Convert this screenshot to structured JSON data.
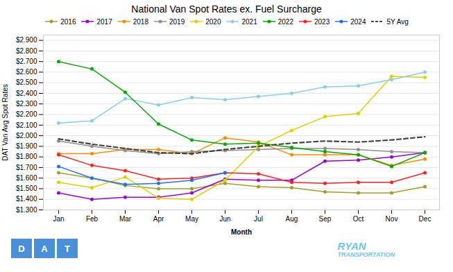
{
  "chart_data": {
    "type": "line",
    "title": "National Van Spot Rates ex. Fuel Surcharge",
    "xlabel": "Month",
    "ylabel": "DAT Van Avg Spot Rates",
    "categories": [
      "Jan",
      "Feb",
      "Mar",
      "Apr",
      "May",
      "Jun",
      "Jul",
      "Aug",
      "Sep",
      "Oct",
      "Nov",
      "Dec"
    ],
    "series": [
      {
        "name": "2016",
        "color": "#a0a028",
        "marker": "circle",
        "line_style": "solid",
        "values": [
          1.65,
          1.6,
          1.53,
          1.5,
          1.5,
          1.55,
          1.52,
          1.51,
          1.47,
          1.46,
          1.46,
          1.52
        ]
      },
      {
        "name": "2017",
        "color": "#9b00d3",
        "marker": "circle",
        "line_style": "solid",
        "values": [
          1.46,
          1.4,
          1.42,
          1.42,
          1.46,
          1.59,
          1.58,
          1.58,
          1.76,
          1.77,
          1.8,
          1.84
        ]
      },
      {
        "name": "2018",
        "color": "#ff8c00",
        "marker": "circle",
        "line_style": "solid",
        "values": [
          1.83,
          1.83,
          1.87,
          1.87,
          1.83,
          1.98,
          1.94,
          1.82,
          1.82,
          1.82,
          1.72,
          1.78
        ]
      },
      {
        "name": "2019",
        "color": "#909090",
        "marker": "circle",
        "line_style": "solid",
        "values": [
          1.95,
          1.9,
          1.86,
          1.83,
          1.85,
          1.86,
          1.87,
          1.88,
          1.88,
          1.87,
          1.85,
          1.84
        ]
      },
      {
        "name": "2020",
        "color": "#e0d000",
        "marker": "circle",
        "line_style": "solid",
        "values": [
          1.56,
          1.51,
          1.61,
          1.41,
          1.4,
          1.58,
          1.9,
          2.05,
          2.18,
          2.21,
          2.56,
          2.55
        ]
      },
      {
        "name": "2021",
        "color": "#87ceeb",
        "marker": "circle",
        "line_style": "solid",
        "values": [
          2.12,
          2.14,
          2.35,
          2.29,
          2.36,
          2.34,
          2.37,
          2.4,
          2.46,
          2.47,
          2.53,
          2.6
        ]
      },
      {
        "name": "2022",
        "color": "#00aa00",
        "marker": "circle",
        "line_style": "solid",
        "values": [
          2.7,
          2.63,
          2.41,
          2.11,
          1.96,
          1.92,
          1.93,
          1.89,
          1.85,
          1.82,
          1.71,
          1.84
        ]
      },
      {
        "name": "2023",
        "color": "#ff2020",
        "marker": "circle",
        "line_style": "solid",
        "values": [
          1.82,
          1.72,
          1.67,
          1.59,
          1.6,
          1.65,
          1.64,
          1.56,
          1.55,
          1.56,
          1.56,
          1.65
        ]
      },
      {
        "name": "2024",
        "color": "#1e6fff",
        "marker": "circle",
        "line_style": "solid",
        "values": [
          1.71,
          1.6,
          1.54,
          1.55,
          1.58,
          1.65,
          null,
          null,
          null,
          null,
          null,
          null
        ]
      },
      {
        "name": "5Y Avg",
        "color": "#444444",
        "line_style": "dashed",
        "values": [
          1.97,
          1.92,
          1.88,
          1.84,
          1.83,
          1.87,
          1.9,
          1.93,
          1.95,
          1.94,
          1.96,
          1.99
        ]
      }
    ],
    "ylim": [
      1.3,
      2.95
    ],
    "yticks": [
      {
        "value": 1.3,
        "label": "$1.300"
      },
      {
        "value": 1.4,
        "label": "$1.400"
      },
      {
        "value": 1.5,
        "label": "$1.500"
      },
      {
        "value": 1.6,
        "label": "$1.600"
      },
      {
        "value": 1.7,
        "label": "$1.700"
      },
      {
        "value": 1.8,
        "label": "$1.800"
      },
      {
        "value": 1.9,
        "label": "$1.900"
      },
      {
        "value": 2.0,
        "label": "$2.000"
      },
      {
        "value": 2.1,
        "label": "$2.100"
      },
      {
        "value": 2.2,
        "label": "$2.200"
      },
      {
        "value": 2.3,
        "label": "$2.300"
      },
      {
        "value": 2.4,
        "label": "$2.400"
      },
      {
        "value": 2.5,
        "label": "$2.500"
      },
      {
        "value": 2.6,
        "label": "$2.600"
      },
      {
        "value": 2.7,
        "label": "$2.700"
      },
      {
        "value": 2.8,
        "label": "$2.800"
      },
      {
        "value": 2.9,
        "label": "$2.900"
      }
    ],
    "grid": true,
    "legend": "top",
    "annotations": [
      {
        "text": "D",
        "color": "#4a90d9"
      },
      {
        "text": "A",
        "color": "#4a90d9"
      },
      {
        "text": "T",
        "color": "#4a90d9"
      },
      {
        "text": "RYAN",
        "color": "#6ec6e8"
      },
      {
        "text": "TRANSPORTATION",
        "color": "#6ec6e8"
      }
    ]
  }
}
